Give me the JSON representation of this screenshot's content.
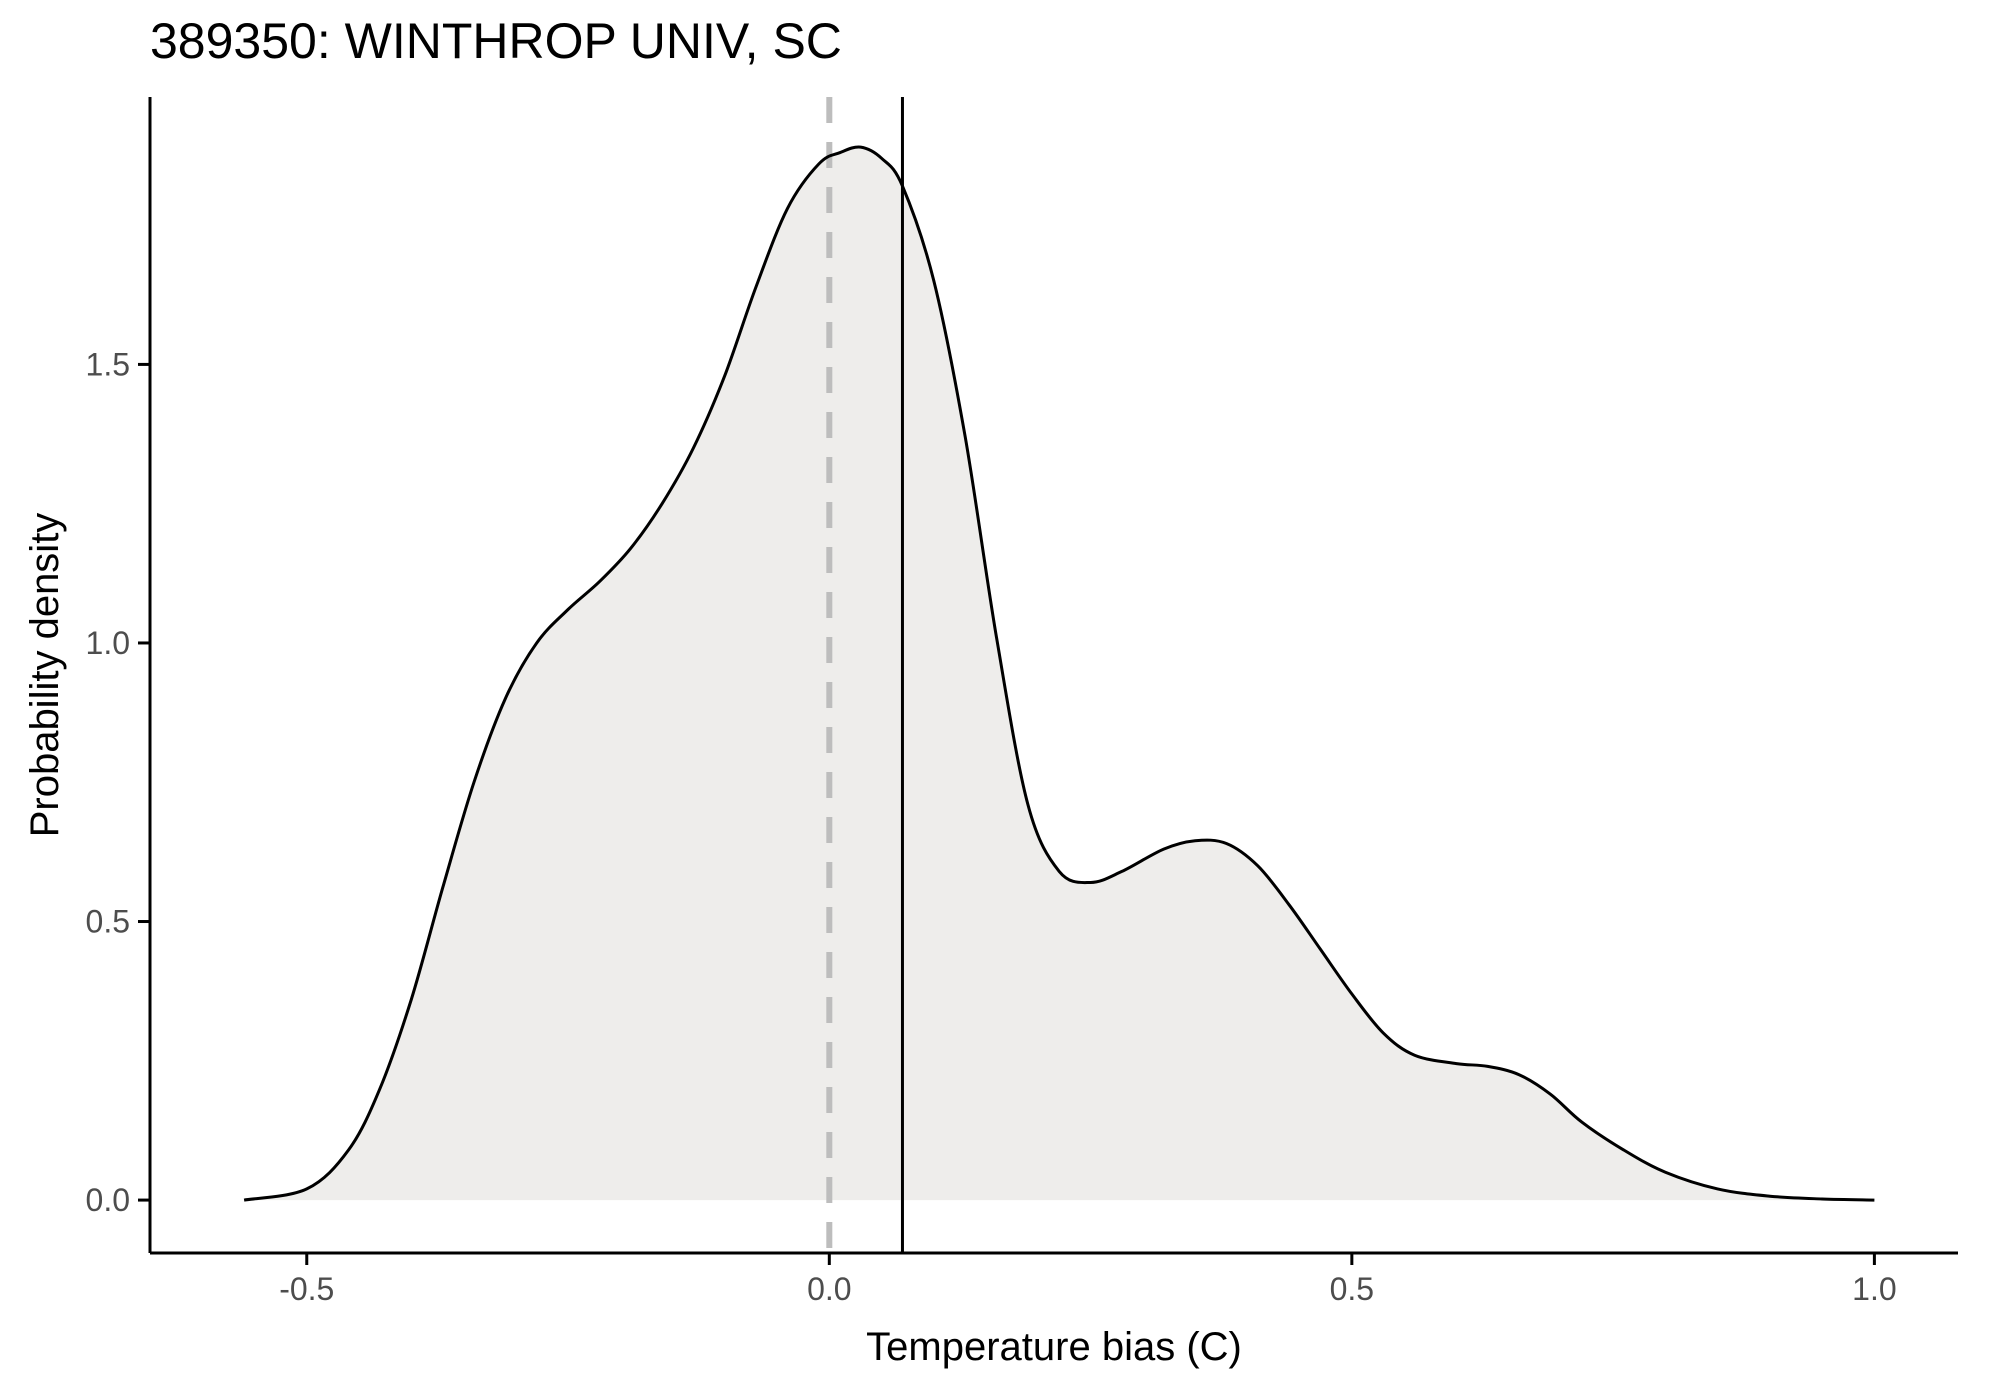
{
  "chart_data": {
    "type": "area",
    "title": "389350: WINTHROP UNIV, SC",
    "xlabel": "Temperature bias (C)",
    "ylabel": "Probability density",
    "xlim": [
      -0.65,
      1.08
    ],
    "ylim": [
      -0.095,
      1.98
    ],
    "x_ticks": [
      -0.5,
      0.0,
      0.5,
      1.0
    ],
    "x_tick_labels": [
      "-0.5",
      "0.0",
      "0.5",
      "1.0"
    ],
    "y_ticks": [
      0.0,
      0.5,
      1.0,
      1.5
    ],
    "y_tick_labels": [
      "0.0",
      "0.5",
      "1.0",
      "1.5"
    ],
    "grid": false,
    "legend": "none",
    "fill_color": "#eeedeb",
    "line_color": "#000000",
    "reference_lines": [
      {
        "x": 0.0,
        "style": "dashed",
        "color": "#bdbdbd"
      },
      {
        "x": 0.07,
        "style": "solid",
        "color": "#000000"
      }
    ],
    "series": [
      {
        "x": [
          -0.56,
          -0.5,
          -0.46,
          -0.43,
          -0.4,
          -0.37,
          -0.34,
          -0.31,
          -0.28,
          -0.25,
          -0.22,
          -0.19,
          -0.16,
          -0.13,
          -0.1,
          -0.07,
          -0.04,
          -0.01,
          0.01,
          0.03,
          0.05,
          0.07,
          0.1,
          0.13,
          0.16,
          0.19,
          0.22,
          0.25,
          0.28,
          0.32,
          0.35,
          0.38,
          0.41,
          0.44,
          0.47,
          0.5,
          0.53,
          0.56,
          0.6,
          0.63,
          0.66,
          0.69,
          0.72,
          0.76,
          0.8,
          0.85,
          0.9,
          0.95,
          1.0
        ],
        "y": [
          0.0,
          0.02,
          0.09,
          0.2,
          0.36,
          0.56,
          0.75,
          0.9,
          1.0,
          1.06,
          1.11,
          1.17,
          1.25,
          1.35,
          1.48,
          1.64,
          1.78,
          1.86,
          1.88,
          1.89,
          1.87,
          1.82,
          1.65,
          1.37,
          1.01,
          0.71,
          0.59,
          0.57,
          0.59,
          0.63,
          0.645,
          0.64,
          0.6,
          0.53,
          0.45,
          0.37,
          0.3,
          0.26,
          0.245,
          0.24,
          0.225,
          0.19,
          0.14,
          0.09,
          0.05,
          0.02,
          0.007,
          0.002,
          0.0
        ]
      }
    ]
  }
}
